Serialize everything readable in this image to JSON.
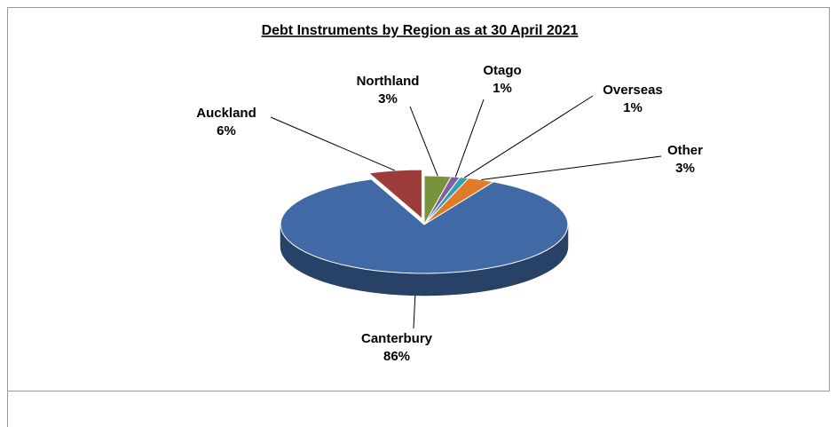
{
  "chart_data": {
    "type": "pie",
    "title": "Debt Instruments by Region as at 30 April 2021",
    "categories": [
      "Northland",
      "Otago",
      "Overseas",
      "Other",
      "Canterbury",
      "Auckland"
    ],
    "values": [
      3,
      1,
      1,
      3,
      86,
      6
    ],
    "value_labels": [
      "3%",
      "1%",
      "1%",
      "3%",
      "86%",
      "6%"
    ],
    "colors": [
      "#77933c",
      "#7f5f9f",
      "#31a0b0",
      "#e07b2a",
      "#4169a5",
      "#9b3b3a"
    ]
  }
}
